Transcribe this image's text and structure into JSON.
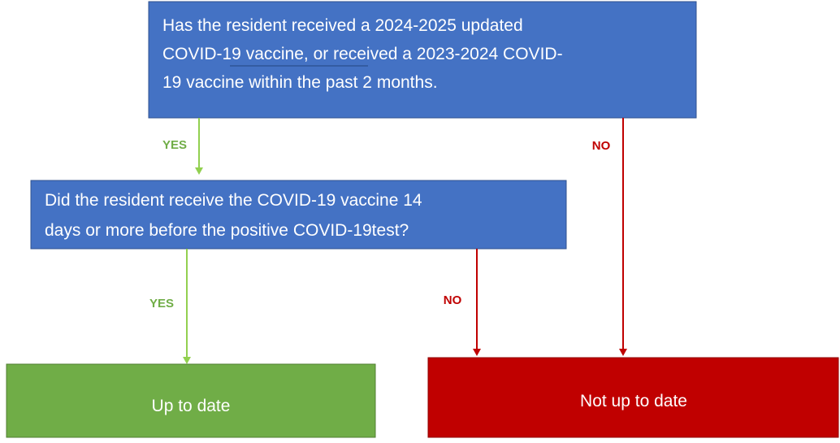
{
  "nodes": [
    {
      "lines": [
        "Has the resident received a 2024-2025 updated",
        "COVID-19 vaccine, or received a 2023-2024 COVID-",
        "19 vaccine within the past 2 months."
      ]
    },
    {
      "lines": [
        "Did the resident receive the COVID-19 vaccine 14",
        "days or more before the positive COVID-19test?"
      ]
    },
    {
      "lines": [
        "Up to date"
      ]
    },
    {
      "lines": [
        "Not up to date"
      ]
    }
  ],
  "edges": [
    {
      "label": "YES"
    },
    {
      "label": "NO"
    },
    {
      "label": "YES"
    },
    {
      "label": "NO"
    }
  ]
}
